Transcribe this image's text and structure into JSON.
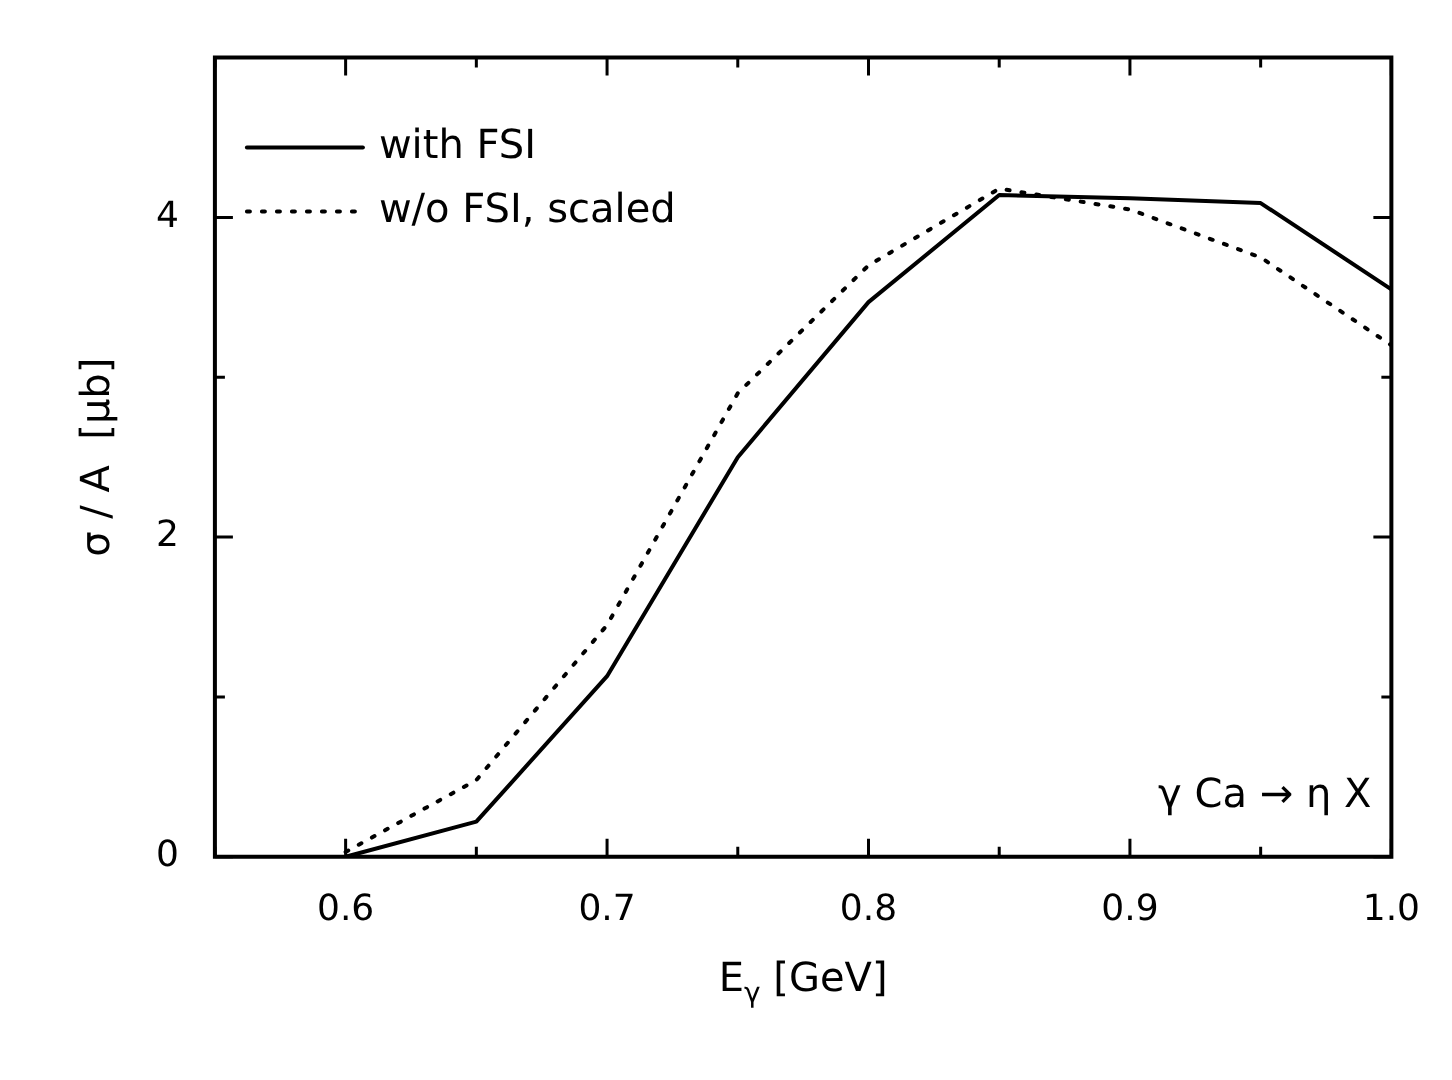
{
  "chart_data": {
    "type": "line",
    "xlabel": "E$_{γ}$ [GeV]",
    "ylabel": "σ / A  [μb]",
    "x": [
      0.6,
      0.65,
      0.7,
      0.75,
      0.8,
      0.85,
      0.9,
      0.95,
      1.0
    ],
    "series": [
      {
        "name": "with FSI",
        "color": "#000000",
        "line_style": "solid",
        "values": [
          0,
          0.22,
          1.13,
          2.5,
          3.47,
          4.14,
          4.12,
          4.09,
          3.55
        ]
      },
      {
        "name": "w/o FSI, scaled",
        "color": "#000000",
        "line_style": "dotted",
        "values": [
          0.03,
          0.48,
          1.45,
          2.9,
          3.7,
          4.18,
          4.05,
          3.75,
          3.2
        ]
      }
    ],
    "xlim": [
      0.55,
      1.0
    ],
    "xticks": [
      {
        "value": 0.55,
        "label": null
      },
      0.6,
      {
        "value": 0.65,
        "label": null
      },
      0.7,
      {
        "value": 0.75,
        "label": null
      },
      0.8,
      {
        "value": 0.85,
        "label": null
      },
      0.9,
      {
        "value": 0.95,
        "label": null
      },
      {
        "value": 1.0,
        "label": "1.0"
      }
    ],
    "ylim": [
      0,
      5
    ],
    "yticks": [
      0,
      {
        "value": 1,
        "label": null
      },
      2,
      {
        "value": 3,
        "label": null
      },
      4,
      {
        "value": 5,
        "label": null
      }
    ],
    "grid": false,
    "legend": "top left",
    "marker": "none",
    "annotations": [
      "γ Ca → η X"
    ]
  }
}
